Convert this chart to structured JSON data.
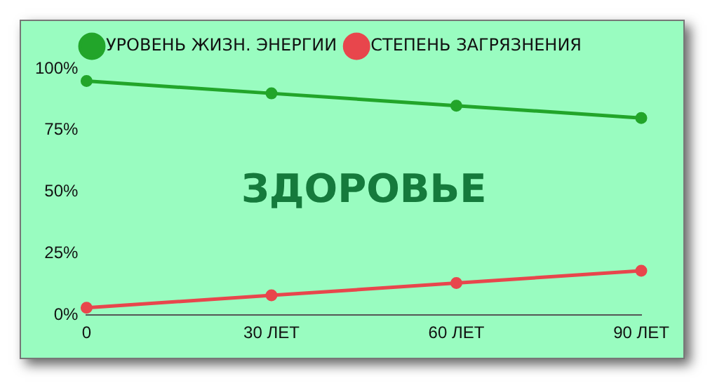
{
  "chart_data": {
    "type": "line",
    "categories": [
      "0",
      "30 ЛЕТ",
      "60 ЛЕТ",
      "90 ЛЕТ"
    ],
    "series": [
      {
        "name": "УРОВЕНЬ ЖИЗН. ЭНЕРГИИ",
        "color": "#22a52a",
        "values": [
          95,
          90,
          85,
          80
        ]
      },
      {
        "name": "СТЕПЕНЬ ЗАГРЯЗНЕНИЯ",
        "color": "#e8464c",
        "values": [
          3,
          8,
          13,
          18
        ]
      }
    ],
    "ylim": [
      0,
      100
    ],
    "yticks": [
      {
        "value": 0,
        "label": "0%"
      },
      {
        "value": 25,
        "label": "25%"
      },
      {
        "value": 50,
        "label": "50%"
      },
      {
        "value": 75,
        "label": "75%"
      },
      {
        "value": 100,
        "label": "100%"
      }
    ],
    "annotations": [
      "ЗДОРОВЬЕ"
    ],
    "legend": "top",
    "marker": "circle",
    "line_style": "solid",
    "grid": false
  }
}
